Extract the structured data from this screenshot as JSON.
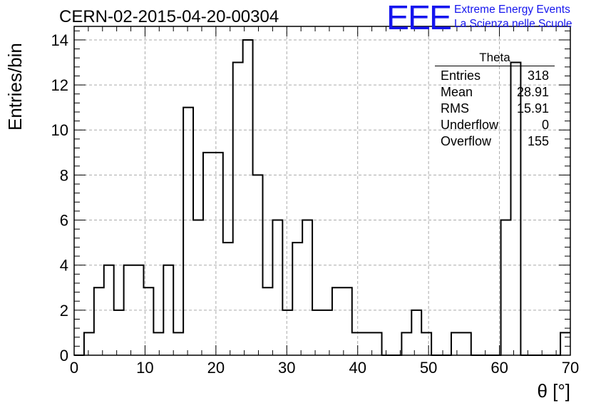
{
  "header": {
    "run_title": "CERN-02-2015-04-20-00304",
    "logo": "EEE",
    "logo_line1": "Extreme Energy Events",
    "logo_line2": "La Scienza nelle Scuole",
    "logo_color": "#1515ee"
  },
  "stats": {
    "title": "Theta",
    "rows": [
      {
        "label": "Entries",
        "value": "318"
      },
      {
        "label": "Mean",
        "value": "28.91"
      },
      {
        "label": "RMS",
        "value": "15.91"
      },
      {
        "label": "Underflow",
        "value": "0"
      },
      {
        "label": "Overflow",
        "value": "155"
      }
    ]
  },
  "chart_data": {
    "type": "bar",
    "style": "step-histogram",
    "xlabel": "θ [°]",
    "ylabel": "Entries/bin",
    "xlim": [
      0,
      70
    ],
    "ylim": [
      0,
      14.6
    ],
    "x_ticks": [
      0,
      10,
      20,
      30,
      40,
      50,
      60,
      70
    ],
    "y_ticks": [
      0,
      2,
      4,
      6,
      8,
      10,
      12,
      14
    ],
    "grid": true,
    "bin_width": 1.4,
    "bin_edges_start": 0,
    "values": [
      0,
      1,
      3,
      4,
      2,
      4,
      4,
      3,
      1,
      4,
      1,
      11,
      6,
      9,
      9,
      5,
      13,
      14,
      8,
      3,
      6,
      2,
      5,
      6,
      2,
      2,
      3,
      3,
      1,
      1,
      1,
      0,
      0,
      1,
      2,
      1,
      0,
      0,
      1,
      1,
      0,
      0,
      0,
      6,
      13,
      0,
      0,
      0,
      0,
      1
    ],
    "line_color": "#000000"
  }
}
